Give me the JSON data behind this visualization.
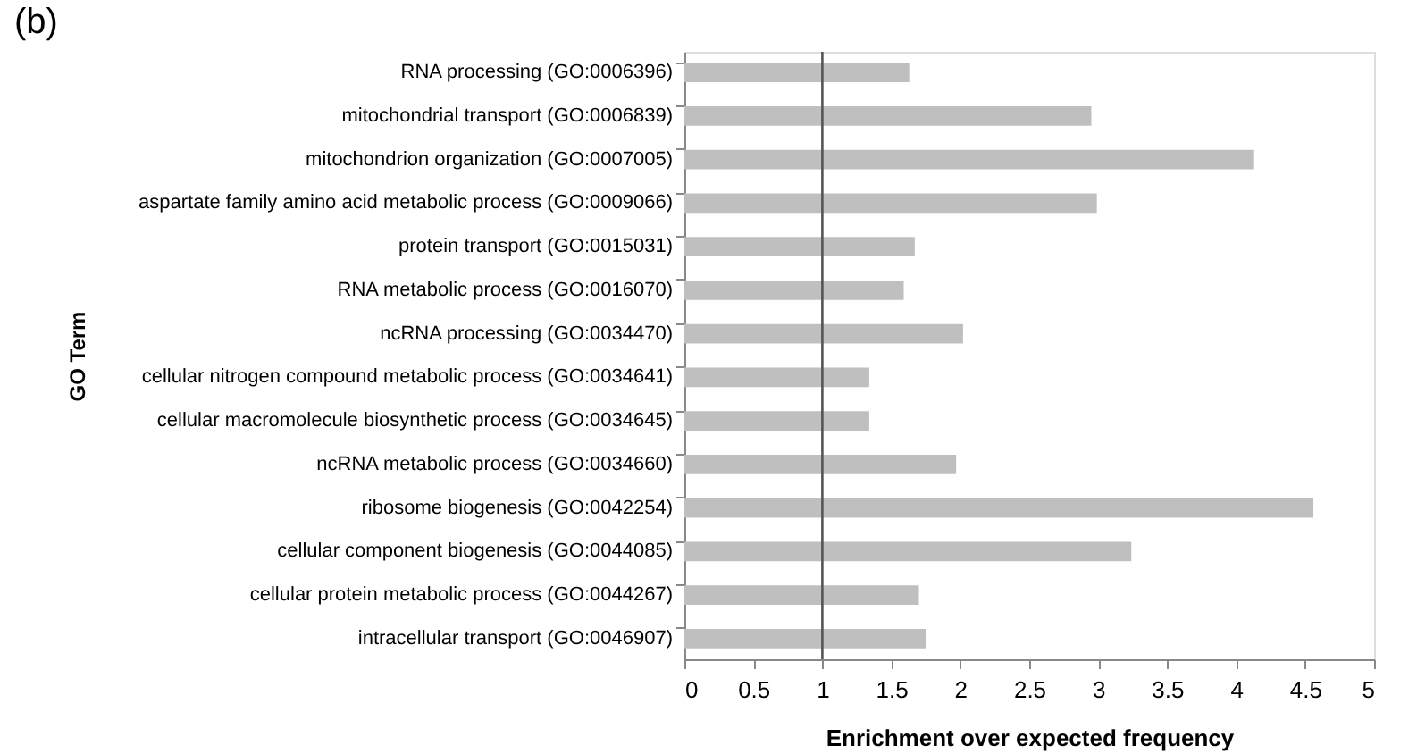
{
  "chart_data": {
    "type": "bar",
    "orientation": "horizontal",
    "xlabel": "Enrichment over expected frequency",
    "ylabel": "GO Term",
    "annotations": [
      "(b)"
    ],
    "categories": [
      "RNA processing (GO:0006396)",
      "mitochondrial transport (GO:0006839)",
      "mitochondrion organization (GO:0007005)",
      "aspartate family amino acid metabolic process (GO:0009066)",
      "protein transport (GO:0015031)",
      "RNA metabolic process (GO:0016070)",
      "ncRNA processing (GO:0034470)",
      "cellular nitrogen compound metabolic process (GO:0034641)",
      "cellular macromolecule biosynthetic process (GO:0034645)",
      "ncRNA metabolic process (GO:0034660)",
      "ribosome biogenesis (GO:0042254)",
      "cellular component biogenesis (GO:0044085)",
      "cellular protein metabolic process (GO:0044267)",
      "intracellular transport (GO:0046907)"
    ],
    "values": [
      1.63,
      2.95,
      4.13,
      2.99,
      1.67,
      1.59,
      2.02,
      1.34,
      1.34,
      1.97,
      4.56,
      3.24,
      1.7,
      1.75
    ],
    "color": "#bfbfbf",
    "xlim": [
      0,
      5
    ],
    "xticks": [
      0,
      0.5,
      1,
      1.5,
      2,
      2.5,
      3,
      3.5,
      4,
      4.5,
      5
    ],
    "ref_lines": [
      {
        "axis": "x",
        "value": 1,
        "color": "#555555"
      }
    ],
    "grid": false
  }
}
